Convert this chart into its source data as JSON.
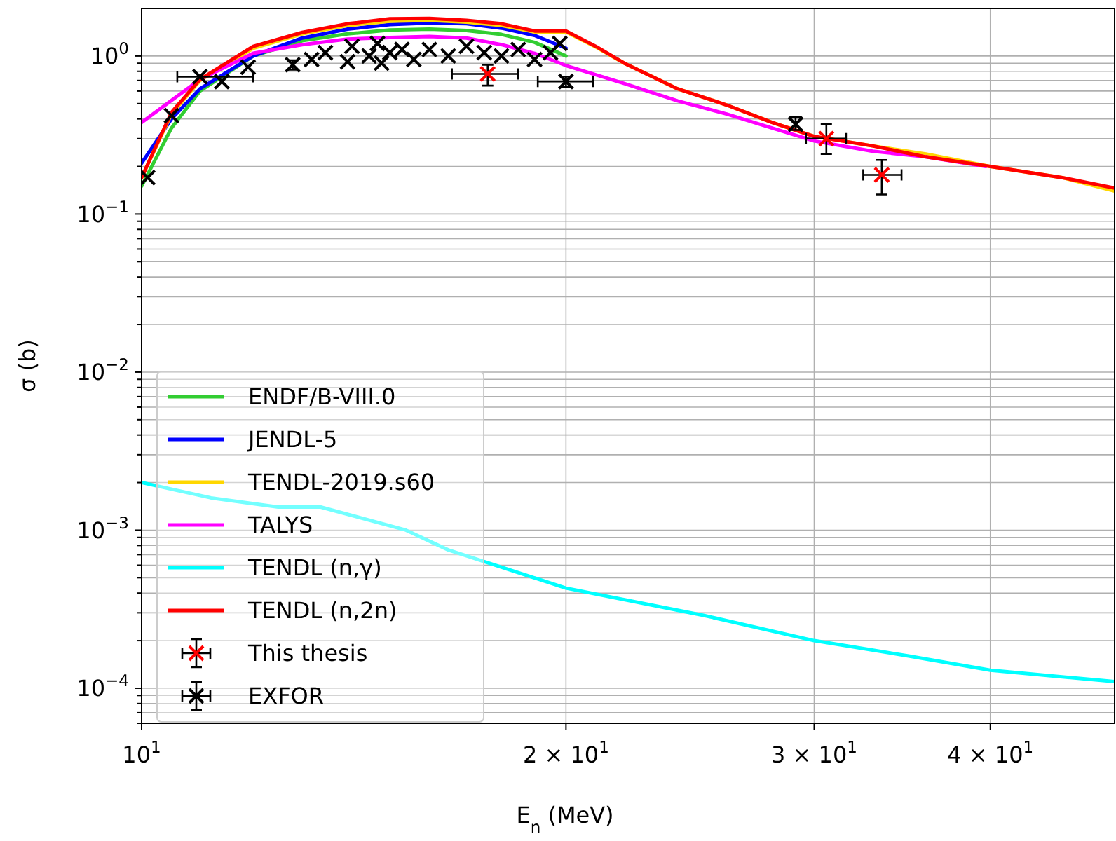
{
  "chart_data": {
    "type": "line",
    "xlabel": "$_{}$E$_{n}$ (MeV)",
    "ylabel": "σ (b)",
    "log": "xy",
    "grid": true,
    "legend": "bottom left",
    "xlim": [
      10,
      49
    ],
    "ylim": [
      6e-05,
      2
    ],
    "xticks": [
      {
        "value": 10,
        "label": "10$^{1}$"
      },
      {
        "value": 20,
        "label": "2 × 10$^{1}$"
      },
      {
        "value": 30,
        "label": "3 × 10$^{1}$"
      },
      {
        "value": 40,
        "label": "4 × 10$^{1}$"
      }
    ],
    "yticks": [
      {
        "value": 6e-05,
        "label": null
      },
      {
        "value": 7e-05,
        "label": null
      },
      {
        "value": 8e-05,
        "label": null
      },
      {
        "value": 9e-05,
        "label": null
      },
      {
        "value": 0.0001,
        "label": "10$^{−4}$"
      },
      {
        "value": 0.0002,
        "label": null
      },
      {
        "value": 0.0003,
        "label": null
      },
      {
        "value": 0.0004,
        "label": null
      },
      {
        "value": 0.0005,
        "label": null
      },
      {
        "value": 0.0006,
        "label": null
      },
      {
        "value": 0.0007,
        "label": null
      },
      {
        "value": 0.0008,
        "label": null
      },
      {
        "value": 0.0009,
        "label": null
      },
      {
        "value": 0.001,
        "label": "10$^{−3}$"
      },
      {
        "value": 0.002,
        "label": null
      },
      {
        "value": 0.003,
        "label": null
      },
      {
        "value": 0.004,
        "label": null
      },
      {
        "value": 0.005,
        "label": null
      },
      {
        "value": 0.006,
        "label": null
      },
      {
        "value": 0.007,
        "label": null
      },
      {
        "value": 0.008,
        "label": null
      },
      {
        "value": 0.009,
        "label": null
      },
      {
        "value": 0.01,
        "label": "10$^{−2}$"
      },
      {
        "value": 0.02,
        "label": null
      },
      {
        "value": 0.03,
        "label": null
      },
      {
        "value": 0.04,
        "label": null
      },
      {
        "value": 0.05,
        "label": null
      },
      {
        "value": 0.06,
        "label": null
      },
      {
        "value": 0.07,
        "label": null
      },
      {
        "value": 0.08,
        "label": null
      },
      {
        "value": 0.09,
        "label": null
      },
      {
        "value": 0.1,
        "label": "10$^{−1}$"
      },
      {
        "value": 0.2,
        "label": null
      },
      {
        "value": 0.3,
        "label": null
      },
      {
        "value": 0.4,
        "label": null
      },
      {
        "value": 0.5,
        "label": null
      },
      {
        "value": 0.6,
        "label": null
      },
      {
        "value": 0.7,
        "label": null
      },
      {
        "value": 0.8,
        "label": null
      },
      {
        "value": 0.9,
        "label": null
      },
      {
        "value": 1,
        "label": "10$^{0}$"
      }
    ],
    "series": [
      {
        "name": "ENDF/B-VIII.0",
        "color": "#32cd32",
        "x": [
          10,
          10.5,
          11,
          12,
          13,
          14,
          15,
          16,
          17,
          18,
          19,
          20
        ],
        "values": [
          0.15,
          0.35,
          0.6,
          1.0,
          1.25,
          1.38,
          1.46,
          1.48,
          1.45,
          1.37,
          1.22,
          1.0
        ]
      },
      {
        "name": "JENDL-5",
        "color": "#0000ff",
        "x": [
          10,
          10.5,
          11,
          12,
          13,
          14,
          15,
          16,
          17,
          18,
          19,
          20
        ],
        "values": [
          0.21,
          0.4,
          0.62,
          1.0,
          1.3,
          1.48,
          1.58,
          1.62,
          1.6,
          1.5,
          1.35,
          1.12
        ]
      },
      {
        "name": "TENDL-2019.s60",
        "color": "#ffd700",
        "x": [
          10,
          10.5,
          11,
          12,
          13,
          14,
          15,
          16,
          17,
          18,
          19,
          20,
          21,
          22,
          24,
          26,
          28,
          30,
          33,
          36,
          40,
          45,
          49
        ],
        "values": [
          0.17,
          0.43,
          0.7,
          1.12,
          1.38,
          1.56,
          1.66,
          1.68,
          1.64,
          1.56,
          1.42,
          1.42,
          1.14,
          0.9,
          0.62,
          0.49,
          0.38,
          0.31,
          0.27,
          0.24,
          0.2,
          0.17,
          0.14
        ]
      },
      {
        "name": "TALYS",
        "color": "#ff00ff",
        "x": [
          10,
          11,
          12,
          13,
          14,
          15,
          16,
          17,
          18,
          19,
          20,
          22,
          24,
          26,
          28,
          30,
          33,
          36,
          39.7
        ],
        "values": [
          0.38,
          0.71,
          1.04,
          1.18,
          1.28,
          1.31,
          1.33,
          1.3,
          1.18,
          1.04,
          0.87,
          0.67,
          0.52,
          0.43,
          0.35,
          0.29,
          0.25,
          0.23,
          0.2
        ]
      },
      {
        "name": "TENDL (n,$_{}$γ)",
        "color": "#00ffff",
        "x": [
          10,
          11.2,
          12.5,
          13.4,
          15.4,
          16.5,
          20,
          25,
          30,
          35,
          40,
          49
        ],
        "values": [
          0.002,
          0.0016,
          0.0014,
          0.0014,
          0.001,
          0.00075,
          0.00043,
          0.00029,
          0.0002,
          0.00016,
          0.00013,
          0.00011
        ]
      },
      {
        "name": "TENDL (n,2n)",
        "color": "#ff0000",
        "x": [
          10,
          10.5,
          11,
          12,
          13,
          14,
          15,
          16,
          17,
          18,
          19,
          20,
          21,
          22,
          24,
          26,
          28,
          30,
          33,
          36,
          40,
          45,
          49
        ],
        "values": [
          0.17,
          0.44,
          0.71,
          1.15,
          1.41,
          1.6,
          1.72,
          1.73,
          1.68,
          1.6,
          1.44,
          1.44,
          1.15,
          0.9,
          0.62,
          0.49,
          0.38,
          0.31,
          0.27,
          0.23,
          0.2,
          0.17,
          0.146
        ]
      },
      {
        "name": "This thesis",
        "type": "scatter",
        "marker": "cross",
        "color": "#ff0000",
        "x": [
          17.6,
          30.6,
          33.5
        ],
        "values": [
          0.77,
          0.3,
          0.177
        ],
        "errors": [
          [
            0.65,
            0.88
          ],
          [
            0.24,
            0.37
          ],
          [
            0.133,
            0.22
          ]
        ],
        "xerrors": [
          [
            16.6,
            18.5
          ],
          [
            29.6,
            31.6
          ],
          [
            32.5,
            34.6
          ]
        ]
      },
      {
        "name": "EXFOR",
        "type": "scatter",
        "marker": "cross",
        "color": "#000000",
        "x": [
          10.1,
          10.5,
          11,
          11.4,
          11.9,
          12.8,
          13.2,
          13.5,
          14,
          14.1,
          14.5,
          14.7,
          14.8,
          15,
          15.3,
          15.6,
          16,
          16.5,
          17,
          17.5,
          18,
          18.5,
          19,
          19.5,
          19.8,
          20,
          29.1
        ],
        "values": [
          0.17,
          0.42,
          0.74,
          0.69,
          0.85,
          0.88,
          0.95,
          1.05,
          0.92,
          1.15,
          1.0,
          1.2,
          0.9,
          1.05,
          1.1,
          0.95,
          1.1,
          1.0,
          1.15,
          1.05,
          1.0,
          1.1,
          0.95,
          1.05,
          1.2,
          0.69,
          0.37
        ],
        "errors": [
          null,
          null,
          null,
          null,
          null,
          [
            0.82,
            0.94
          ],
          null,
          null,
          null,
          null,
          null,
          null,
          null,
          null,
          null,
          null,
          null,
          null,
          null,
          null,
          null,
          null,
          null,
          null,
          null,
          [
            0.64,
            0.74
          ],
          [
            0.34,
            0.41
          ]
        ],
        "xerrors": [
          null,
          null,
          [
            10.6,
            12.0
          ],
          null,
          null,
          null,
          null,
          null,
          null,
          null,
          null,
          null,
          null,
          null,
          null,
          null,
          null,
          null,
          null,
          null,
          null,
          null,
          null,
          null,
          null,
          [
            19.1,
            20.9
          ],
          null
        ]
      }
    ]
  }
}
